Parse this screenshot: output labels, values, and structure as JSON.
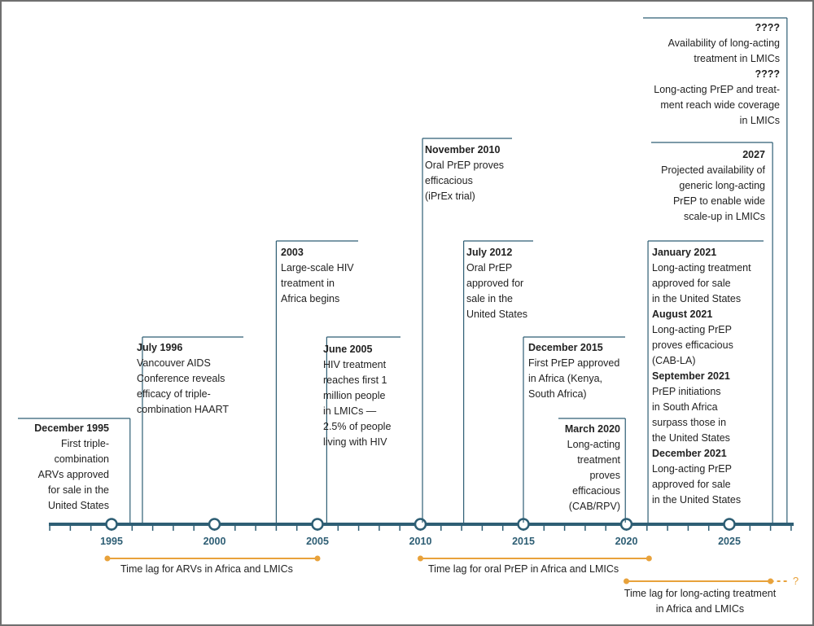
{
  "accent_colors": {
    "axis": "#2e5e74",
    "lag": "#e8a23b",
    "text": "#222222"
  },
  "axis": {
    "min_year": 1992,
    "max_year": 2028,
    "labeled_years": [
      1995,
      2000,
      2005,
      2010,
      2015,
      2020,
      2025
    ]
  },
  "events": [
    {
      "id": "dec1995",
      "year": 1995.9,
      "title": "December 1995",
      "lines": [
        "First triple-",
        "combination",
        "ARVs approved",
        "for sale in the",
        "United States"
      ]
    },
    {
      "id": "jul1996",
      "year": 1996.5,
      "title": "July 1996",
      "lines": [
        "Vancouver AIDS",
        "Conference reveals",
        "efficacy of triple-",
        "combination HAART"
      ]
    },
    {
      "id": "y2003",
      "year": 2003,
      "title": "2003",
      "lines": [
        "Large-scale HIV",
        "treatment in",
        "Africa begins"
      ]
    },
    {
      "id": "jun2005",
      "year": 2005.45,
      "title": "June 2005",
      "lines": [
        "HIV treatment",
        "reaches first 1",
        "million people",
        "in LMICs —",
        "2.5% of people",
        "living with HIV"
      ]
    },
    {
      "id": "nov2010",
      "year": 2010.1,
      "title": "November 2010",
      "lines": [
        "Oral PrEP proves",
        "efficacious",
        "(iPrEx trial)"
      ]
    },
    {
      "id": "jul2012",
      "year": 2012.1,
      "title": "July 2012",
      "lines": [
        "Oral PrEP",
        "approved for",
        "sale in the",
        "United States"
      ]
    },
    {
      "id": "dec2015",
      "year": 2015.0,
      "title": "December 2015",
      "lines": [
        "First PrEP approved",
        "in Africa (Kenya,",
        "South Africa)"
      ]
    },
    {
      "id": "mar2020",
      "year": 2019.95,
      "title": "March 2020",
      "lines": [
        "Long-acting",
        "treatment",
        "proves",
        "efficacious",
        "(CAB/RPV)"
      ]
    },
    {
      "id": "y2021",
      "year": 2021.05,
      "entries": [
        {
          "title": "January 2021",
          "lines": [
            "Long-acting treatment",
            "approved for sale",
            "in the United States"
          ]
        },
        {
          "title": "August 2021",
          "lines": [
            "Long-acting PrEP",
            "proves efficacious",
            "(CAB-LA)"
          ]
        },
        {
          "title": "September 2021",
          "lines": [
            "PrEP initiations",
            "in South Africa",
            "surpass those in",
            "the United States"
          ]
        },
        {
          "title": "December 2021",
          "lines": [
            "Long-acting PrEP",
            "approved for sale",
            "in the United States"
          ]
        }
      ]
    },
    {
      "id": "y2027",
      "year": 2027.1,
      "title": "2027",
      "lines": [
        "Projected availability of",
        "generic long-acting",
        "PrEP to enable wide",
        "scale-up in LMICs"
      ]
    },
    {
      "id": "unknown",
      "year": 2027.8,
      "entries": [
        {
          "title": "????",
          "lines": [
            "Availability of long-acting",
            "treatment in LMICs"
          ]
        },
        {
          "title": "????",
          "lines": [
            "Long-acting PrEP and treat-",
            "ment reach wide coverage",
            "in LMICs"
          ]
        }
      ]
    }
  ],
  "time_lags": [
    {
      "id": "arv",
      "start": 1994.8,
      "end": 2005.0,
      "label": "Time lag for ARVs in Africa and LMICs"
    },
    {
      "id": "oral",
      "start": 2010.0,
      "end": 2021.1,
      "label": "Time lag for oral PrEP in Africa and LMICs"
    },
    {
      "id": "long",
      "start": 2020.0,
      "end": 2027.0,
      "dashed_end": 2028.0,
      "end_marker": "?",
      "label_lines": [
        "Time lag for long-acting treatment",
        "in Africa and LMICs"
      ]
    }
  ]
}
